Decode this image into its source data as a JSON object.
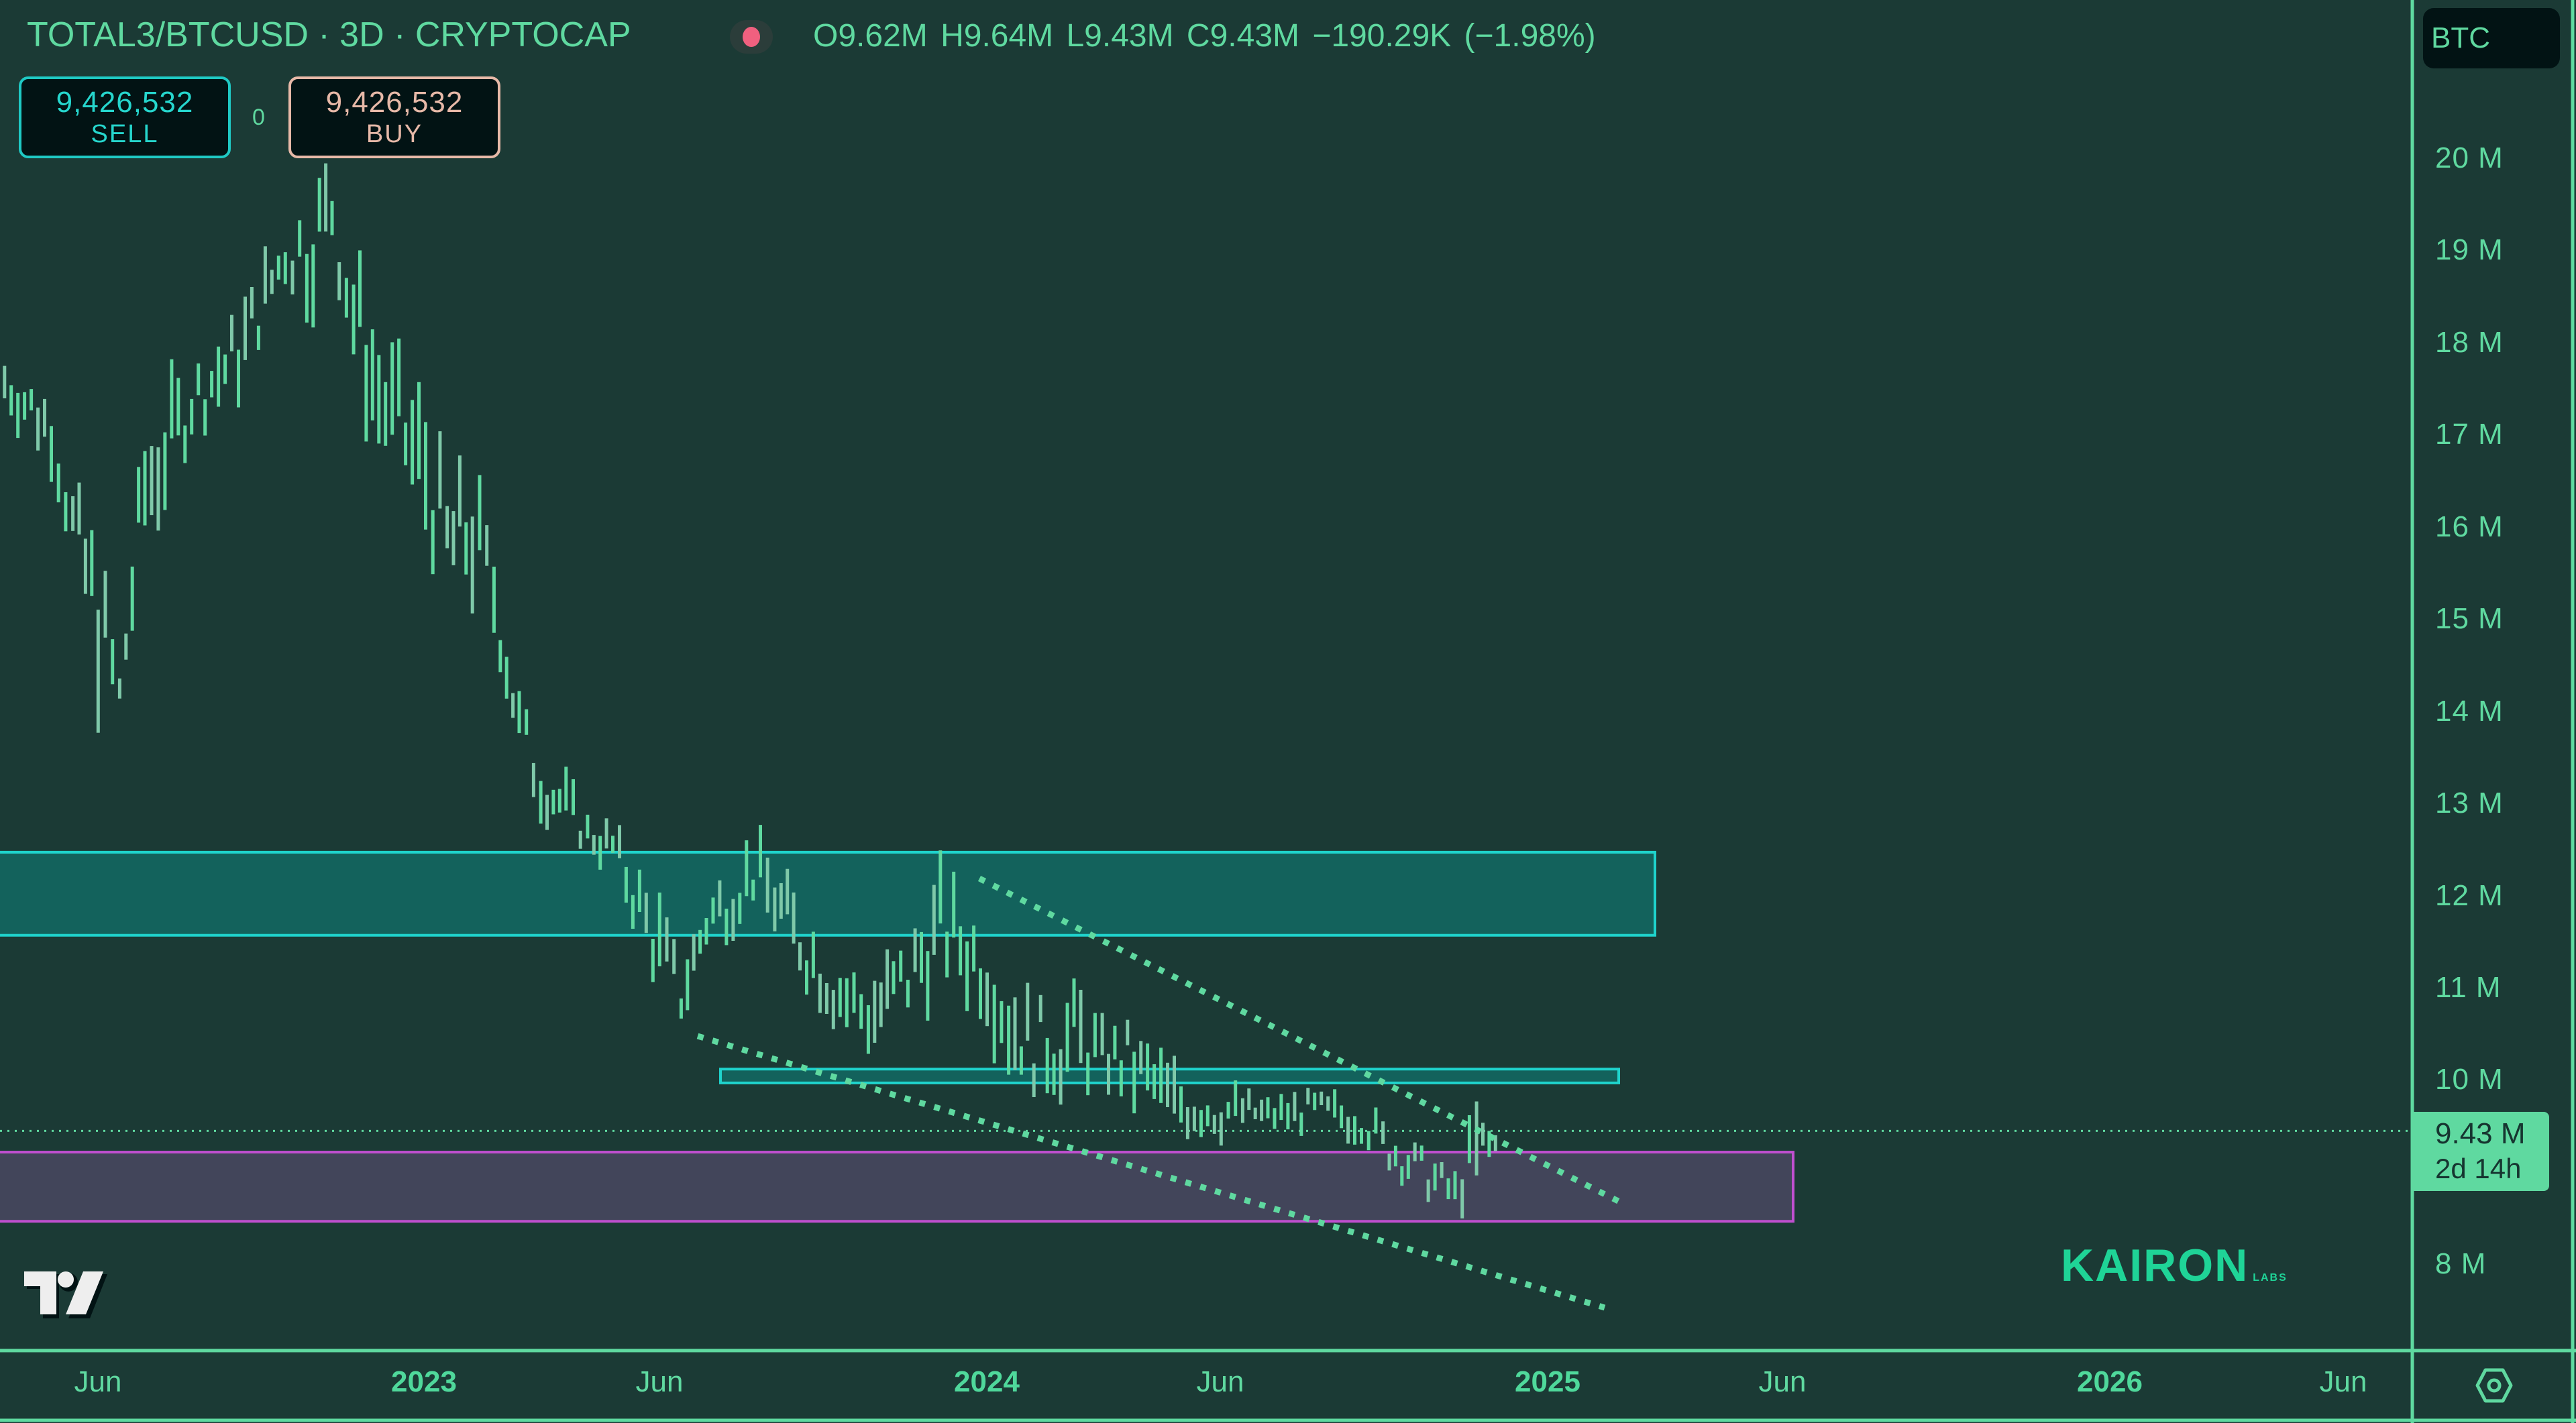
{
  "header": {
    "symbol_title": "TOTAL3/BTCUSD · 3D · CRYPTOCAP",
    "status_icon": "market-status-dot",
    "status_color": "#f0607f",
    "ohlc_text": "O9.62M  H9.64M  L9.43M  C9.43M  −190.29K (−1.98%)",
    "ohlc": {
      "open": "9.62M",
      "high": "9.64M",
      "low": "9.43M",
      "close": "9.43M",
      "change": "−190.29K",
      "change_pct": "−1.98%"
    }
  },
  "trade": {
    "sell_price": "9,426,532",
    "sell_label": "SELL",
    "spread": "0",
    "buy_price": "9,426,532",
    "buy_label": "BUY"
  },
  "price_axis": {
    "currency": "BTC",
    "labels": [
      "20 M",
      "19 M",
      "18 M",
      "17 M",
      "16 M",
      "15 M",
      "14 M",
      "13 M",
      "12 M",
      "11 M",
      "10 M",
      "8 M"
    ],
    "last_price": "9.43 M",
    "countdown": "2d 14h"
  },
  "time_axis": {
    "labels": [
      {
        "text": "Jun",
        "year": false
      },
      {
        "text": "2023",
        "year": true
      },
      {
        "text": "Jun",
        "year": false
      },
      {
        "text": "2024",
        "year": true
      },
      {
        "text": "Jun",
        "year": false
      },
      {
        "text": "2025",
        "year": true
      },
      {
        "text": "Jun",
        "year": false
      },
      {
        "text": "2026",
        "year": true
      },
      {
        "text": "Jun",
        "year": false
      }
    ]
  },
  "watermark": {
    "main": "KAIRON",
    "sub": "LABS"
  },
  "icons": {
    "tradingview_logo": "tradingview-logo",
    "settings": "settings-hex-icon"
  },
  "colors": {
    "background": "#1b3a35",
    "bars": "#5fd9a0",
    "resistance_zone_fill": "#13625c",
    "resistance_zone_stroke": "#1fd3cc",
    "support_zone_fill": "#42455a",
    "support_zone_stroke": "#c04fd0",
    "trendline": "#5fd9a0",
    "frame": "#5fd9a0"
  },
  "chart_data": {
    "type": "bar",
    "title": "TOTAL3/BTCUSD · 3D · CRYPTOCAP",
    "xlabel": "",
    "ylabel": "Price (BTC)",
    "ylim": [
      7.3,
      21.5
    ],
    "yticks": [
      8,
      10,
      11,
      12,
      13,
      14,
      15,
      16,
      17,
      18,
      19,
      20
    ],
    "xticks": [
      "Jun 2022",
      "2023",
      "Jun 2023",
      "2024",
      "Jun 2024",
      "2025",
      "Jun 2025",
      "2026",
      "Jun 2026"
    ],
    "grid": false,
    "last_price": 9.43,
    "series": [
      {
        "name": "TOTAL3/BTCUSD 3D bars (approx. high/low, sampled)",
        "x": [
          "2022-03",
          "2022-04",
          "2022-05",
          "2022-05-15",
          "2022-06",
          "2022-06-15",
          "2022-07",
          "2022-08",
          "2022-09",
          "2022-10",
          "2022-10-15",
          "2022-11",
          "2022-11-15",
          "2022-12",
          "2023-01",
          "2023-01-15",
          "2023-02",
          "2023-02-15",
          "2023-03",
          "2023-03-15",
          "2023-04",
          "2023-04-15",
          "2023-05",
          "2023-06",
          "2023-06-15",
          "2023-07",
          "2023-08",
          "2023-08-15",
          "2023-09",
          "2023-10",
          "2023-10-15",
          "2023-11",
          "2023-11-15",
          "2023-12",
          "2024-01",
          "2024-01-15",
          "2024-02",
          "2024-03",
          "2024-03-15",
          "2024-04",
          "2024-05",
          "2024-06",
          "2024-06-15",
          "2024-07",
          "2024-08",
          "2024-09",
          "2024-09-15",
          "2024-10",
          "2024-11",
          "2024-11-15",
          "2024-12"
        ],
        "high": [
          17.9,
          17.9,
          17.5,
          16.5,
          16.0,
          14.5,
          17.3,
          17.8,
          18.4,
          19.4,
          19.8,
          20.1,
          19.2,
          18.1,
          17.5,
          16.5,
          16.8,
          15.8,
          14.3,
          13.6,
          13.3,
          12.9,
          12.8,
          12.0,
          11.3,
          12.1,
          12.7,
          12.4,
          12.0,
          11.4,
          11.2,
          11.5,
          11.8,
          12.3,
          11.8,
          11.3,
          10.9,
          11.1,
          10.6,
          10.7,
          10.2,
          10.0,
          9.9,
          9.8,
          9.9,
          9.8,
          9.6,
          9.4,
          9.0,
          9.8,
          9.4
        ],
        "low": [
          17.1,
          17.2,
          16.6,
          15.5,
          14.0,
          13.8,
          15.5,
          16.9,
          17.3,
          18.5,
          18.2,
          18.8,
          17.4,
          16.7,
          15.7,
          15.1,
          15.0,
          14.7,
          13.3,
          12.8,
          12.6,
          12.4,
          12.2,
          10.8,
          10.5,
          11.3,
          11.8,
          11.5,
          11.0,
          10.3,
          10.2,
          10.3,
          10.6,
          11.0,
          10.6,
          10.0,
          9.8,
          9.7,
          9.9,
          9.6,
          9.3,
          9.3,
          9.4,
          9.4,
          9.4,
          9.3,
          9.0,
          8.8,
          8.5,
          8.6,
          9.2
        ]
      }
    ],
    "annotations": [
      {
        "type": "zone",
        "label": "resistance zone",
        "y_range": [
          11.55,
          12.45
        ],
        "color": "#1fd3cc"
      },
      {
        "type": "zone",
        "label": "narrow resistance band",
        "y_range": [
          9.95,
          10.1
        ],
        "color": "#1fd3cc"
      },
      {
        "type": "zone",
        "label": "support zone",
        "y_range": [
          8.45,
          9.2
        ],
        "color": "#c04fd0"
      },
      {
        "type": "trendline",
        "label": "descending upper trendline (dotted)",
        "from": [
          12.2,
          "2024-01"
        ],
        "to": [
          8.8,
          "2025-02"
        ]
      },
      {
        "type": "trendline",
        "label": "descending lower trendline (dotted)",
        "from": [
          10.5,
          "2023-07"
        ],
        "to": [
          7.5,
          "2025-02"
        ]
      },
      {
        "type": "hline",
        "label": "last price (dotted)",
        "y": 9.43
      }
    ]
  }
}
